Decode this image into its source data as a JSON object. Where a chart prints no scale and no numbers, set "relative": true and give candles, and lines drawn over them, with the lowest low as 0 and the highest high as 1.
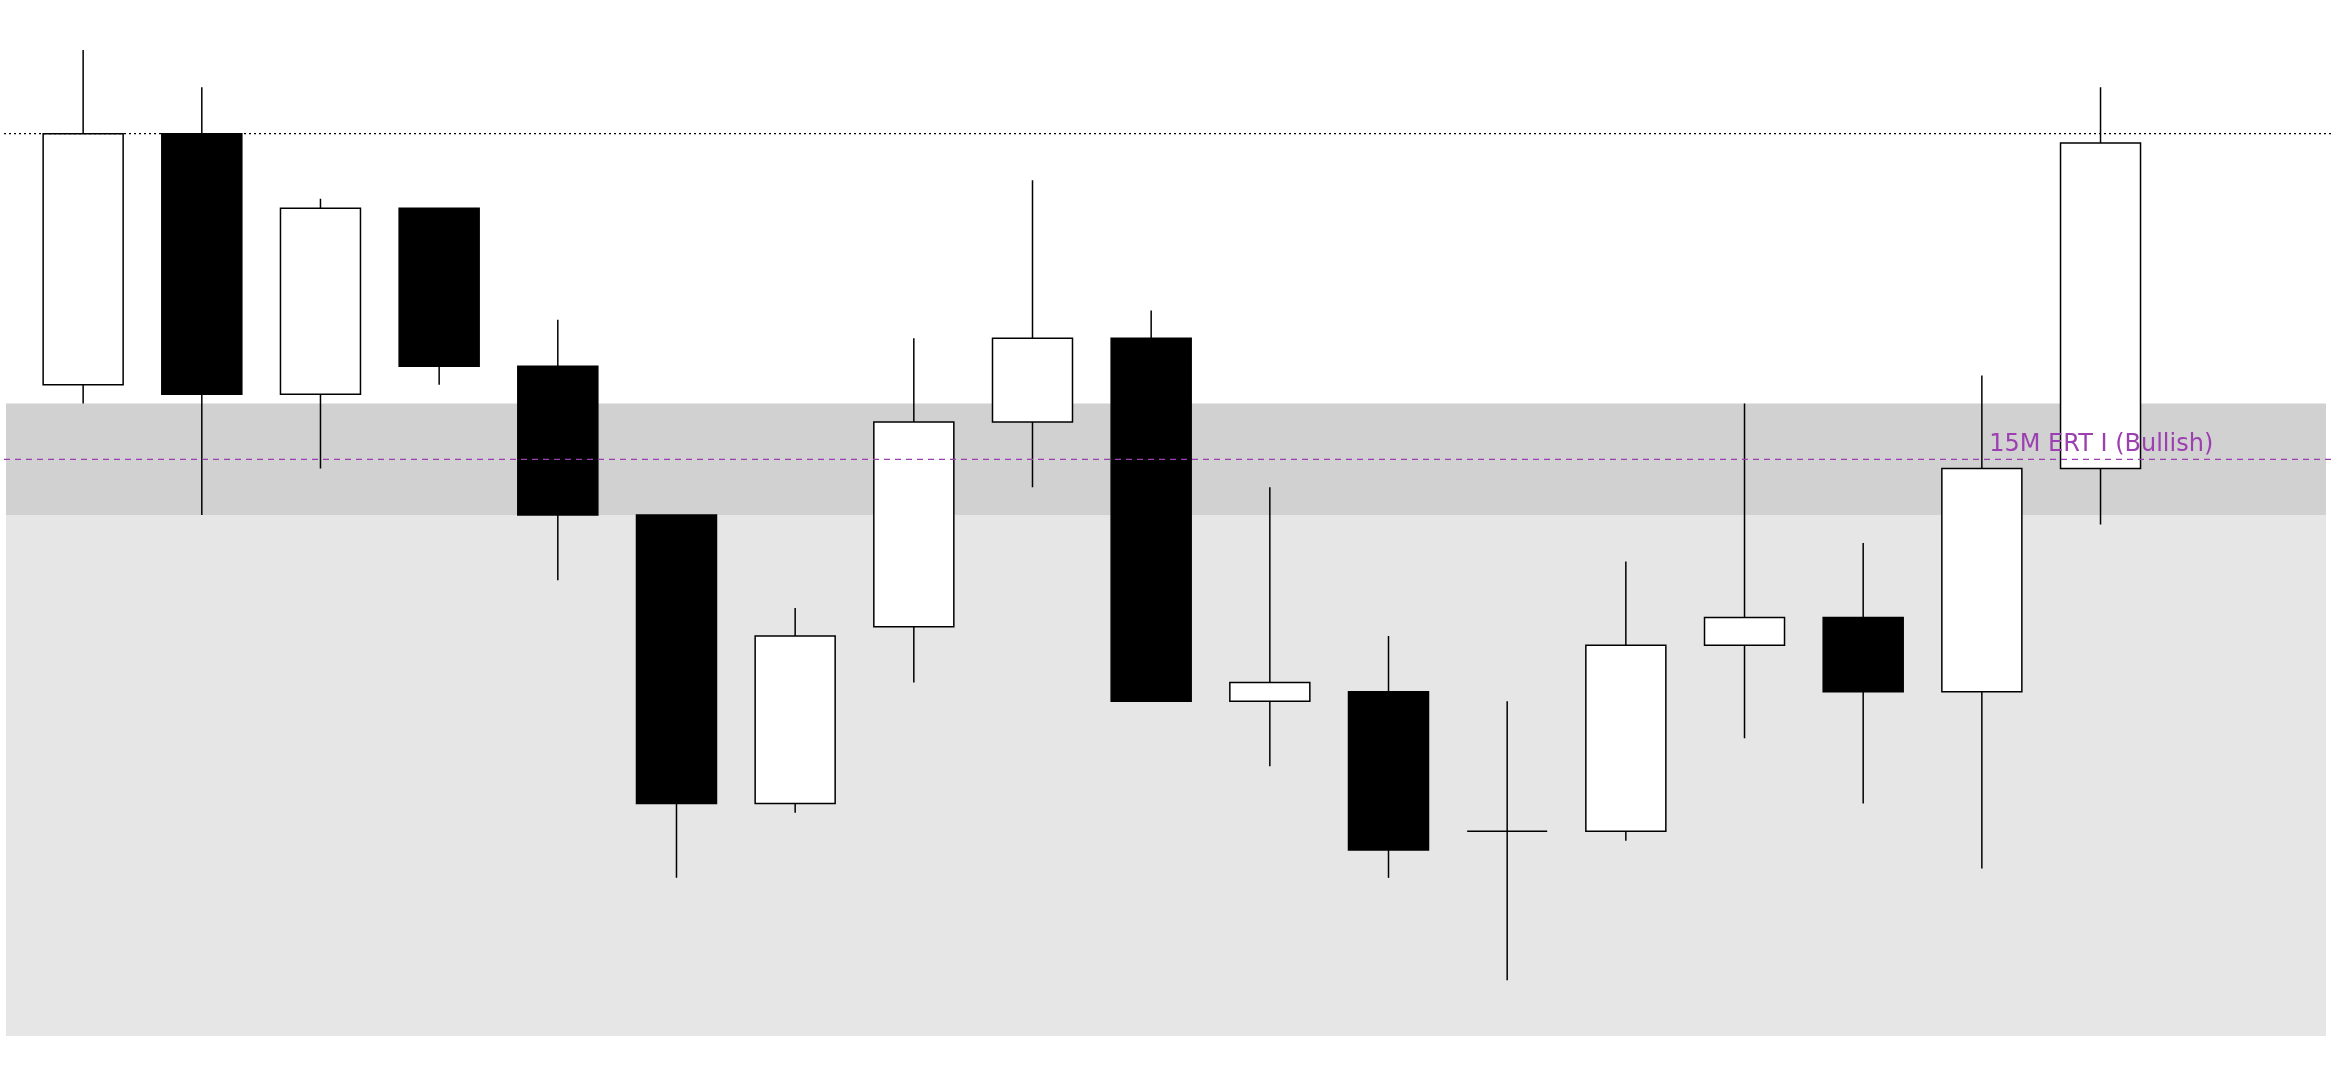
{
  "chart_data": {
    "type": "candlestick",
    "relative": true,
    "categories": [
      null,
      null,
      null,
      null,
      null,
      null,
      null,
      null,
      null,
      null,
      null,
      null,
      null,
      null,
      null,
      null,
      null,
      null
    ],
    "ohlc": [
      [
        0.64,
        1.0,
        0.62,
        0.91
      ],
      [
        0.91,
        0.96,
        0.5,
        0.63
      ],
      [
        0.63,
        0.84,
        0.55,
        0.83
      ],
      [
        0.83,
        0.83,
        0.64,
        0.66
      ],
      [
        0.66,
        0.71,
        0.43,
        0.5
      ],
      [
        0.5,
        0.5,
        0.11,
        0.19
      ],
      [
        0.19,
        0.4,
        0.18,
        0.37
      ],
      [
        0.38,
        0.69,
        0.32,
        0.6
      ],
      [
        0.6,
        0.86,
        0.53,
        0.69
      ],
      [
        0.69,
        0.72,
        0.3,
        0.3
      ],
      [
        0.3,
        0.53,
        0.23,
        0.32
      ],
      [
        0.31,
        0.37,
        0.11,
        0.14
      ],
      [
        0.16,
        0.3,
        0.0,
        0.16
      ],
      [
        0.16,
        0.45,
        0.15,
        0.36
      ],
      [
        0.36,
        0.62,
        0.26,
        0.39
      ],
      [
        0.39,
        0.47,
        0.19,
        0.31
      ],
      [
        0.31,
        0.65,
        0.12,
        0.55
      ],
      [
        0.55,
        0.96,
        0.49,
        0.9
      ]
    ],
    "bands": [
      {
        "axis": "y",
        "from": -0.06,
        "to": 0.59,
        "color": "#e6e6e6"
      },
      {
        "axis": "y",
        "from": 0.5,
        "to": 0.62,
        "color": "#d1d1d1"
      }
    ],
    "ref_lines": [
      {
        "axis": "y",
        "value": 0.91,
        "color": "#000000",
        "line_style": "dotted"
      },
      {
        "axis": "y",
        "value": 0.56,
        "label": "15M ERT I (Bullish)",
        "color": "#9c3fb0",
        "line_style": "dashed"
      }
    ]
  }
}
